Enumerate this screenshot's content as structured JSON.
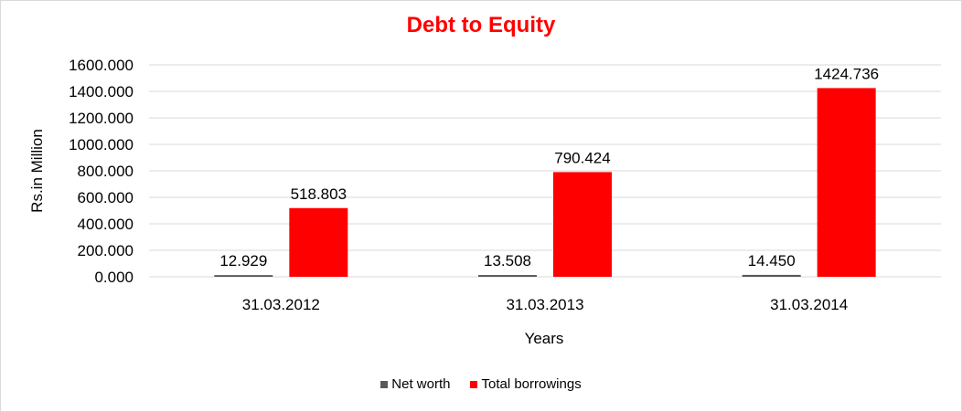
{
  "chart_data": {
    "type": "bar",
    "title": "Debt to Equity",
    "xlabel": "Years",
    "ylabel": "Rs.in Million",
    "categories": [
      "31.03.2012",
      "31.03.2013",
      "31.03.2014"
    ],
    "series": [
      {
        "name": "Net worth",
        "values": [
          12.929,
          13.508,
          14.45
        ],
        "labels": [
          "12.929",
          "13.508",
          "14.450"
        ],
        "color": "#595959"
      },
      {
        "name": "Total borrowings",
        "values": [
          518.803,
          790.424,
          1424.736
        ],
        "labels": [
          "518.803",
          "790.424",
          "1424.736"
        ],
        "color": "#ff0000"
      }
    ],
    "ylim": [
      0,
      1600
    ],
    "yticks": [
      "0.000",
      "200.000",
      "400.000",
      "600.000",
      "800.000",
      "1000.000",
      "1200.000",
      "1400.000",
      "1600.000"
    ],
    "grid": true,
    "legend": "bottom",
    "title_color": "#ff0000"
  }
}
